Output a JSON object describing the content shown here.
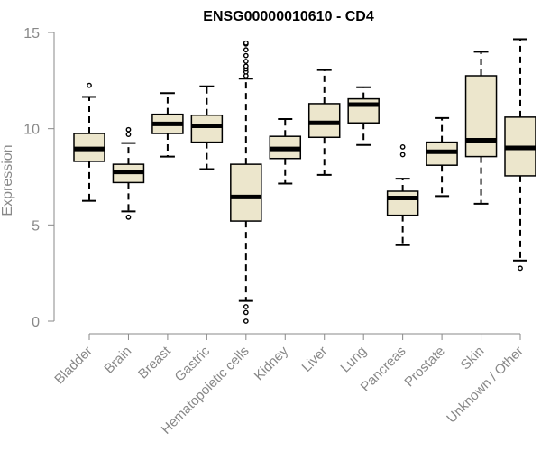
{
  "chart_data": {
    "type": "box",
    "title": "ENSG00000010610 - CD4",
    "xlabel": "",
    "ylabel": "Expression",
    "ylim": [
      0,
      15
    ],
    "yticks": [
      0,
      5,
      10,
      15
    ],
    "box_fill": "#ece6cc",
    "categories": [
      "Bladder",
      "Brain",
      "Breast",
      "Gastric",
      "Hematopoietic cells",
      "Kidney",
      "Liver",
      "Lung",
      "Pancreas",
      "Prostate",
      "Skin",
      "Unknown / Other"
    ],
    "boxes": [
      {
        "whisker_low": 6.25,
        "q1": 8.3,
        "median": 8.95,
        "q3": 9.75,
        "whisker_high": 11.65,
        "outliers": [
          12.25
        ]
      },
      {
        "whisker_low": 5.7,
        "q1": 7.2,
        "median": 7.75,
        "q3": 8.15,
        "whisker_high": 9.25,
        "outliers": [
          5.4,
          9.7,
          9.95
        ]
      },
      {
        "whisker_low": 8.55,
        "q1": 9.75,
        "median": 10.25,
        "q3": 10.75,
        "whisker_high": 11.85,
        "outliers": []
      },
      {
        "whisker_low": 7.9,
        "q1": 9.3,
        "median": 10.15,
        "q3": 10.7,
        "whisker_high": 12.2,
        "outliers": []
      },
      {
        "whisker_low": 1.05,
        "q1": 5.2,
        "median": 6.45,
        "q3": 8.15,
        "whisker_high": 12.6,
        "outliers": [
          0.0,
          0.45,
          0.75,
          12.75,
          12.95,
          13.1,
          13.25,
          13.5,
          13.8,
          14.1,
          14.4,
          14.45
        ]
      },
      {
        "whisker_low": 7.15,
        "q1": 8.45,
        "median": 8.95,
        "q3": 9.6,
        "whisker_high": 10.5,
        "outliers": []
      },
      {
        "whisker_low": 7.6,
        "q1": 9.55,
        "median": 10.3,
        "q3": 11.3,
        "whisker_high": 13.05,
        "outliers": []
      },
      {
        "whisker_low": 9.15,
        "q1": 10.3,
        "median": 11.25,
        "q3": 11.55,
        "whisker_high": 12.15,
        "outliers": []
      },
      {
        "whisker_low": 3.95,
        "q1": 5.5,
        "median": 6.4,
        "q3": 6.75,
        "whisker_high": 7.4,
        "outliers": [
          8.65,
          9.05
        ]
      },
      {
        "whisker_low": 6.5,
        "q1": 8.1,
        "median": 8.8,
        "q3": 9.3,
        "whisker_high": 10.55,
        "outliers": []
      },
      {
        "whisker_low": 6.1,
        "q1": 8.55,
        "median": 9.4,
        "q3": 12.75,
        "whisker_high": 14.0,
        "outliers": []
      },
      {
        "whisker_low": 3.15,
        "q1": 7.55,
        "median": 9.0,
        "q3": 10.6,
        "whisker_high": 14.65,
        "outliers": [
          2.75
        ]
      }
    ]
  }
}
